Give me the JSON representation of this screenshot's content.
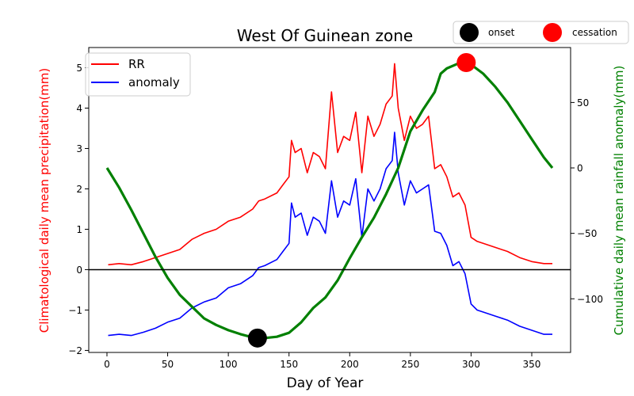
{
  "chart_data": {
    "type": "line",
    "title": "West Of Guinean zone",
    "xlabel": "Day of Year",
    "ylabel_left": "Climatological daily mean precipitation(mm)",
    "ylabel_right": "Cumulative daily mean rainfall anomaly(mm)",
    "xlim": [
      -15,
      382
    ],
    "ylim_left": [
      -2.05,
      5.5
    ],
    "ylim_right": [
      -141,
      92
    ],
    "x_ticks": [
      0,
      50,
      100,
      150,
      200,
      250,
      300,
      350
    ],
    "y_ticks_left": [
      -2,
      -1,
      0,
      1,
      2,
      3,
      4,
      5
    ],
    "y_ticks_right": [
      -100,
      -50,
      0,
      50
    ],
    "zero_line": 0,
    "legend": {
      "placement": "upper-left",
      "entries": [
        {
          "label": "RR",
          "color": "#ff0000"
        },
        {
          "label": "anomaly",
          "color": "#0000ff"
        }
      ]
    },
    "marker_legend": {
      "placement": "top-right",
      "entries": [
        {
          "label": "onset",
          "color": "#000000"
        },
        {
          "label": "cessation",
          "color": "#ff0000"
        }
      ]
    },
    "series": [
      {
        "name": "RR",
        "axis": "left",
        "color": "#ff0000",
        "x": [
          1,
          10,
          20,
          30,
          40,
          50,
          60,
          70,
          80,
          90,
          100,
          110,
          120,
          125,
          130,
          140,
          145,
          150,
          152,
          155,
          160,
          165,
          170,
          175,
          180,
          185,
          190,
          195,
          200,
          205,
          210,
          215,
          220,
          225,
          230,
          235,
          237,
          240,
          245,
          250,
          255,
          260,
          265,
          270,
          275,
          280,
          285,
          290,
          295,
          300,
          305,
          310,
          320,
          330,
          340,
          350,
          360,
          367
        ],
        "y": [
          0.12,
          0.15,
          0.12,
          0.2,
          0.3,
          0.4,
          0.5,
          0.75,
          0.9,
          1.0,
          1.2,
          1.3,
          1.5,
          1.7,
          1.75,
          1.9,
          2.1,
          2.3,
          3.2,
          2.9,
          3.0,
          2.4,
          2.9,
          2.8,
          2.5,
          4.4,
          2.9,
          3.3,
          3.2,
          3.9,
          2.4,
          3.8,
          3.3,
          3.6,
          4.1,
          4.3,
          5.1,
          4.0,
          3.2,
          3.8,
          3.5,
          3.6,
          3.8,
          2.5,
          2.6,
          2.3,
          1.8,
          1.9,
          1.6,
          0.8,
          0.7,
          0.65,
          0.55,
          0.45,
          0.3,
          0.2,
          0.15,
          0.15
        ]
      },
      {
        "name": "anomaly",
        "axis": "left",
        "color": "#0000ff",
        "x": [
          1,
          10,
          20,
          30,
          40,
          50,
          60,
          70,
          80,
          90,
          100,
          110,
          120,
          125,
          130,
          140,
          145,
          150,
          152,
          155,
          160,
          165,
          170,
          175,
          180,
          185,
          190,
          195,
          200,
          205,
          210,
          215,
          220,
          225,
          230,
          235,
          237,
          240,
          245,
          250,
          255,
          260,
          265,
          270,
          275,
          280,
          285,
          290,
          295,
          300,
          305,
          310,
          320,
          330,
          340,
          350,
          360,
          367
        ],
        "y": [
          -1.63,
          -1.6,
          -1.63,
          -1.55,
          -1.45,
          -1.3,
          -1.2,
          -0.95,
          -0.8,
          -0.7,
          -0.45,
          -0.35,
          -0.15,
          0.05,
          0.1,
          0.25,
          0.45,
          0.65,
          1.65,
          1.3,
          1.4,
          0.85,
          1.3,
          1.2,
          0.9,
          2.2,
          1.3,
          1.7,
          1.6,
          2.25,
          0.8,
          2.0,
          1.7,
          2.0,
          2.5,
          2.7,
          3.4,
          2.4,
          1.6,
          2.2,
          1.9,
          2.0,
          2.1,
          0.95,
          0.9,
          0.6,
          0.1,
          0.2,
          -0.1,
          -0.85,
          -1.0,
          -1.05,
          -1.15,
          -1.25,
          -1.4,
          -1.5,
          -1.6,
          -1.6
        ]
      },
      {
        "name": "",
        "axis": "right",
        "color": "#008000",
        "x": [
          0,
          10,
          20,
          30,
          40,
          50,
          60,
          70,
          80,
          90,
          100,
          110,
          120,
          124,
          130,
          140,
          150,
          160,
          170,
          180,
          190,
          200,
          210,
          220,
          230,
          240,
          250,
          260,
          270,
          275,
          280,
          290,
          296,
          300,
          310,
          320,
          330,
          340,
          350,
          360,
          367
        ],
        "y": [
          0,
          -15,
          -32,
          -50,
          -68,
          -84,
          -97,
          -106,
          -115,
          -120,
          -124,
          -127,
          -129.5,
          -130,
          -130,
          -129,
          -126,
          -118,
          -107,
          -99,
          -86,
          -69,
          -53,
          -38,
          -20,
          0,
          28,
          44,
          58,
          72,
          76,
          80,
          80.5,
          79,
          72,
          62,
          50,
          36,
          22,
          8,
          0
        ]
      }
    ],
    "markers": [
      {
        "label": "onset",
        "axis": "right",
        "x": 124,
        "y": -130,
        "color": "#000000"
      },
      {
        "label": "cessation",
        "axis": "right",
        "x": 296,
        "y": 80.5,
        "color": "#ff0000"
      }
    ]
  }
}
